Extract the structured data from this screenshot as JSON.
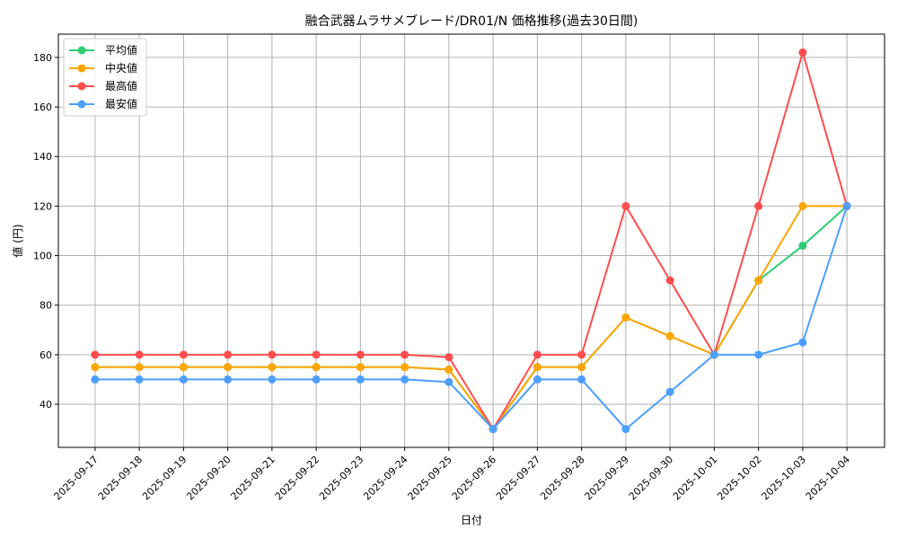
{
  "chart_data": {
    "type": "line",
    "title": "融合武器ムラサメブレード/DR01/N 価格推移(過去30日間)",
    "xlabel": "日付",
    "ylabel": "値 (円)",
    "ylim": [
      22.6,
      189.4
    ],
    "yticks": [
      40,
      60,
      80,
      100,
      120,
      140,
      160,
      180
    ],
    "grid": true,
    "legend_position": "top-left",
    "x": [
      "2025-09-17",
      "2025-09-18",
      "2025-09-19",
      "2025-09-20",
      "2025-09-21",
      "2025-09-22",
      "2025-09-23",
      "2025-09-24",
      "2025-09-25",
      "2025-09-26",
      "2025-09-27",
      "2025-09-28",
      "2025-09-29",
      "2025-09-30",
      "2025-10-01",
      "2025-10-02",
      "2025-10-03",
      "2025-10-04"
    ],
    "series": [
      {
        "name": "平均値",
        "color": "#2ecc71",
        "values": [
          55,
          55,
          55,
          55,
          55,
          55,
          55,
          55,
          54,
          30,
          55,
          55,
          75,
          67.5,
          60,
          90,
          104,
          120
        ]
      },
      {
        "name": "中央値",
        "color": "#ffa500",
        "values": [
          55,
          55,
          55,
          55,
          55,
          55,
          55,
          55,
          54,
          30,
          55,
          55,
          75,
          67.5,
          60,
          90,
          120,
          120
        ]
      },
      {
        "name": "最高値",
        "color": "#ff4d4d",
        "values": [
          60,
          60,
          60,
          60,
          60,
          60,
          60,
          60,
          59,
          30,
          60,
          60,
          120,
          90,
          60,
          120,
          182,
          120
        ]
      },
      {
        "name": "最安値",
        "color": "#4d9fff",
        "values": [
          50,
          50,
          50,
          50,
          50,
          50,
          50,
          50,
          49,
          30,
          50,
          50,
          30,
          45,
          60,
          60,
          65,
          120
        ]
      }
    ]
  }
}
